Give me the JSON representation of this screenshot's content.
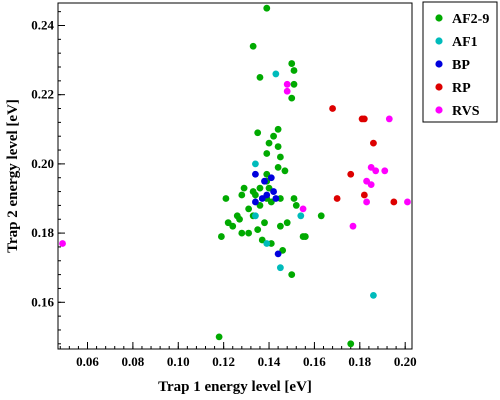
{
  "chart_data": {
    "type": "scatter",
    "xlabel": "Trap 1 energy level [eV]",
    "ylabel": "Trap 2 energy level [eV]",
    "xlim": [
      0.047,
      0.203
    ],
    "ylim": [
      0.1465,
      0.2465
    ],
    "x_ticks": [
      0.06,
      0.08,
      0.1,
      0.12,
      0.14,
      0.16,
      0.18,
      0.2
    ],
    "x_tick_labels": [
      "0.06",
      "0.08",
      "0.10",
      "0.12",
      "0.14",
      "0.16",
      "0.18",
      "0.20"
    ],
    "y_ticks": [
      0.16,
      0.18,
      0.2,
      0.22,
      0.24
    ],
    "y_tick_labels": [
      "0.16",
      "0.18",
      "0.20",
      "0.22",
      "0.24"
    ],
    "legend_position": "top-right, outside plot",
    "grid": false,
    "series": [
      {
        "name": "AF2-9",
        "color": "#00aa00",
        "points": [
          [
            0.139,
            0.245
          ],
          [
            0.133,
            0.234
          ],
          [
            0.136,
            0.225
          ],
          [
            0.15,
            0.229
          ],
          [
            0.151,
            0.227
          ],
          [
            0.151,
            0.223
          ],
          [
            0.15,
            0.219
          ],
          [
            0.144,
            0.21
          ],
          [
            0.135,
            0.209
          ],
          [
            0.142,
            0.208
          ],
          [
            0.14,
            0.206
          ],
          [
            0.139,
            0.203
          ],
          [
            0.144,
            0.205
          ],
          [
            0.145,
            0.202
          ],
          [
            0.144,
            0.199
          ],
          [
            0.139,
            0.197
          ],
          [
            0.147,
            0.198
          ],
          [
            0.139,
            0.195
          ],
          [
            0.14,
            0.193
          ],
          [
            0.136,
            0.193
          ],
          [
            0.133,
            0.192
          ],
          [
            0.129,
            0.193
          ],
          [
            0.128,
            0.191
          ],
          [
            0.134,
            0.191
          ],
          [
            0.139,
            0.19
          ],
          [
            0.145,
            0.19
          ],
          [
            0.141,
            0.189
          ],
          [
            0.136,
            0.188
          ],
          [
            0.131,
            0.187
          ],
          [
            0.151,
            0.19
          ],
          [
            0.152,
            0.188
          ],
          [
            0.121,
            0.19
          ],
          [
            0.133,
            0.185
          ],
          [
            0.126,
            0.185
          ],
          [
            0.127,
            0.184
          ],
          [
            0.124,
            0.182
          ],
          [
            0.138,
            0.183
          ],
          [
            0.145,
            0.182
          ],
          [
            0.148,
            0.183
          ],
          [
            0.135,
            0.181
          ],
          [
            0.131,
            0.18
          ],
          [
            0.128,
            0.18
          ],
          [
            0.119,
            0.179
          ],
          [
            0.141,
            0.177
          ],
          [
            0.155,
            0.179
          ],
          [
            0.156,
            0.179
          ],
          [
            0.146,
            0.175
          ],
          [
            0.15,
            0.168
          ],
          [
            0.163,
            0.185
          ],
          [
            0.118,
            0.15
          ],
          [
            0.176,
            0.148
          ],
          [
            0.122,
            0.183
          ],
          [
            0.137,
            0.178
          ]
        ]
      },
      {
        "name": "AF1",
        "color": "#00bbbb",
        "points": [
          [
            0.143,
            0.226
          ],
          [
            0.134,
            0.2
          ],
          [
            0.134,
            0.185
          ],
          [
            0.154,
            0.185
          ],
          [
            0.139,
            0.177
          ],
          [
            0.145,
            0.17
          ],
          [
            0.186,
            0.162
          ]
        ]
      },
      {
        "name": "BP",
        "color": "#0000dd",
        "points": [
          [
            0.141,
            0.196
          ],
          [
            0.138,
            0.195
          ],
          [
            0.134,
            0.197
          ],
          [
            0.142,
            0.192
          ],
          [
            0.137,
            0.19
          ],
          [
            0.134,
            0.189
          ],
          [
            0.139,
            0.191
          ],
          [
            0.143,
            0.19
          ],
          [
            0.144,
            0.174
          ]
        ]
      },
      {
        "name": "RP",
        "color": "#dd0000",
        "points": [
          [
            0.168,
            0.216
          ],
          [
            0.181,
            0.213
          ],
          [
            0.182,
            0.213
          ],
          [
            0.186,
            0.206
          ],
          [
            0.176,
            0.197
          ],
          [
            0.17,
            0.19
          ],
          [
            0.182,
            0.191
          ],
          [
            0.195,
            0.189
          ]
        ]
      },
      {
        "name": "RVS",
        "color": "#ff00ff",
        "points": [
          [
            0.148,
            0.223
          ],
          [
            0.148,
            0.221
          ],
          [
            0.193,
            0.213
          ],
          [
            0.185,
            0.199
          ],
          [
            0.187,
            0.198
          ],
          [
            0.191,
            0.198
          ],
          [
            0.183,
            0.195
          ],
          [
            0.185,
            0.194
          ],
          [
            0.183,
            0.189
          ],
          [
            0.155,
            0.187
          ],
          [
            0.201,
            0.189
          ],
          [
            0.177,
            0.182
          ],
          [
            0.049,
            0.177
          ]
        ]
      }
    ]
  }
}
